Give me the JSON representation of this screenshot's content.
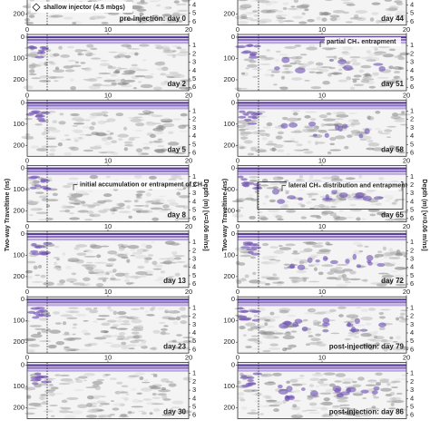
{
  "figure": {
    "injector_label": "shallow injector (4.5 mbgs)",
    "y_axis_label": "Two-way Traveltime (ns)",
    "depth_axis_label": "Depth (m) [v=0.06 m/ns]",
    "x_ticks": [
      0,
      10,
      20
    ],
    "y_ticks": [
      0,
      100,
      200
    ],
    "depth_ticks": [
      1,
      2,
      3,
      4,
      5,
      6
    ],
    "left_panels": [
      {
        "label": "pre-injection: day 0"
      },
      {
        "label": "day 2"
      },
      {
        "label": "day 5"
      },
      {
        "label": "day 8",
        "annotation": "initial accumulation or entrapment of CH₄"
      },
      {
        "label": "day 13"
      },
      {
        "label": "day 23"
      },
      {
        "label": "day 30"
      }
    ],
    "right_panels": [
      {
        "label": "day 44"
      },
      {
        "label": "day 51",
        "annotation": "partial CH₄ entrapment"
      },
      {
        "label": "day 58"
      },
      {
        "label": "day 65",
        "annotation": "lateral CH₄ distribution and entrapment"
      },
      {
        "label": "day 72"
      },
      {
        "label": "post-injection: day 79"
      },
      {
        "label": "post-injection: day 86"
      }
    ]
  }
}
